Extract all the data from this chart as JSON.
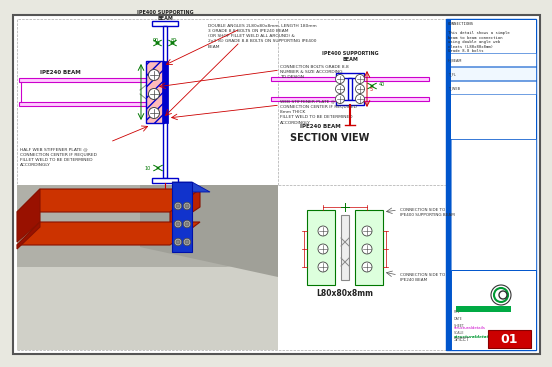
{
  "bg_color": "#e8e8e0",
  "paper_color": "#ffffff",
  "border_color": "#555555",
  "beam_blue": "#0000cc",
  "beam_magenta": "#cc00cc",
  "beam_red": "#cc0000",
  "beam_green": "#007700",
  "hatch_pink": "#ffbbbb",
  "title_block_bg": "#ffffff",
  "title_block_blue": "#0055cc",
  "sheet_red": "#cc0000",
  "section_title": "SECTION VIEW",
  "bottom_label": "L80x80x8mm",
  "website": "structuraldetails.store",
  "sheet_no": "01",
  "ann_top": "DOUBLE ANGLES 2L80x80x8mm, LENGTH 180mm\n3 GRADE 8.8 BOLTS ON IPE240 BEAM\n(OR SHOP FILLET WELD ALL AROUND) &\n2x3 (6) GRADE 8.8 BOLTS ON SUPPORTING IPE400\nBEAM",
  "ann_bolts": "CONNECTION BOLTS GRADE 8.8\nNUMBER & SIZE ACCORDING\nTO DESIGN",
  "ann_web": "WEB STIFFENER PLATE @\nCONNECTION CENTER IF REQUIRED\n8mm THICK\nFILLET WELD TO BE DETERMINED\nACCORDINGLY",
  "ann_half": "HALF WEB STIFFENER PLATE @\nCONNECTION CENTER IF REQUIRED\nFILLET WELD TO BE DETERMINED\nACCORDINGLY",
  "ann_conn1": "CONNECTION SIDE TO\nIPE400 SUPPORTING BEAM",
  "ann_conn2": "CONNECTION SIDE TO\nIPE240 BEAM",
  "lbl_ipe240": "IPE240 BEAM",
  "lbl_ipe400_l": "IPE400 SUPPORTING\nBEAM",
  "lbl_ipe400_r": "IPE400 SUPPORTING\nBEAM",
  "lbl_ipe240_r": "IPE240 BEAM"
}
